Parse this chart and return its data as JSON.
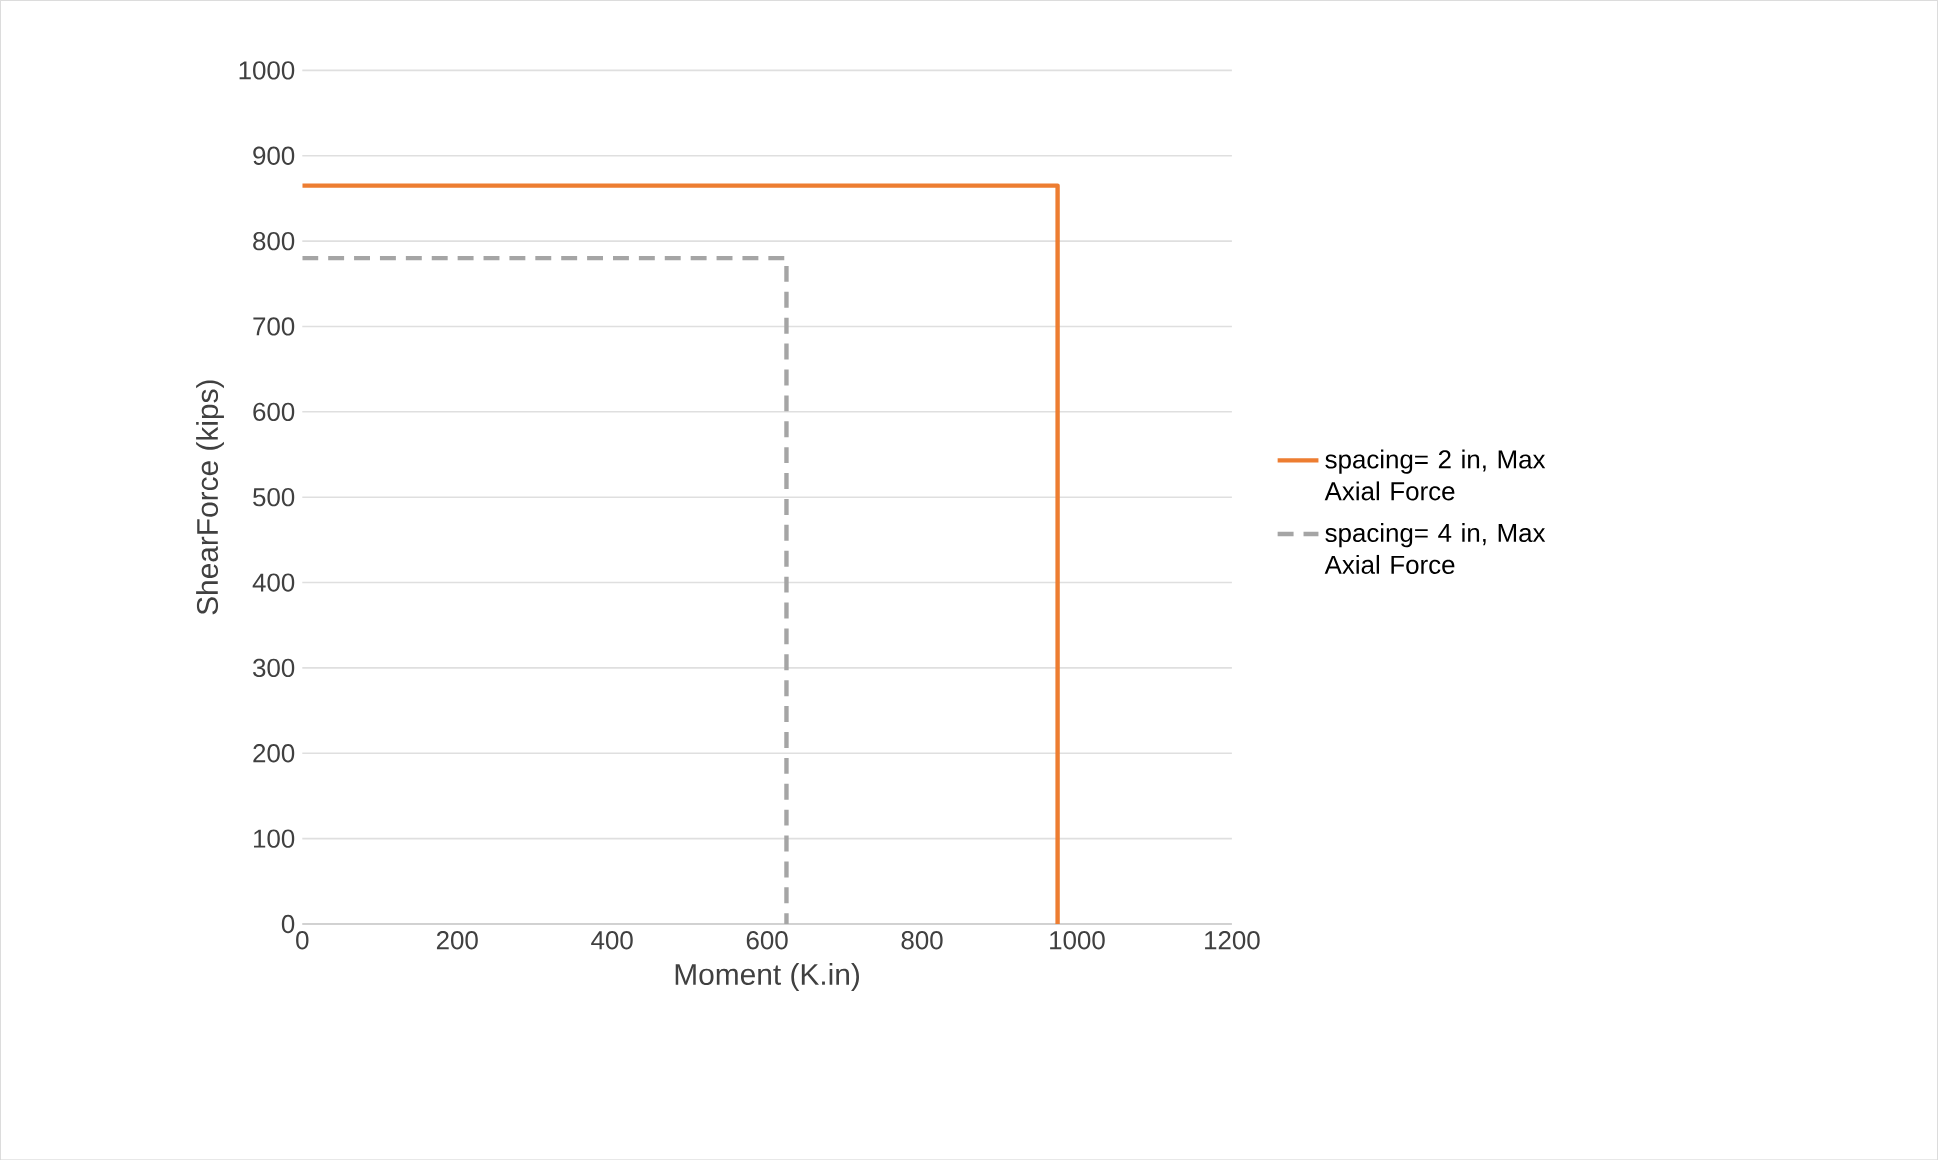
{
  "chart_data": {
    "type": "line",
    "xlabel": "Moment (K.in)",
    "ylabel": "ShearForce (kips)",
    "series": [
      {
        "name": "spacing= 2 in, Max Axial Force",
        "color": "#ed7d31",
        "line_style": "solid",
        "x": [
          0,
          975,
          975
        ],
        "values": [
          865,
          865,
          0
        ]
      },
      {
        "name": "spacing= 4 in, Max Axial Force",
        "color": "#a5a5a5",
        "line_style": "dashed",
        "x": [
          0,
          625,
          625
        ],
        "values": [
          780,
          780,
          0
        ]
      }
    ],
    "xlim": [
      0,
      1200
    ],
    "xticks": [
      0,
      200,
      400,
      600,
      800,
      1000,
      1200
    ],
    "ylim": [
      0,
      1000
    ],
    "yticks": [
      0,
      100,
      200,
      300,
      400,
      500,
      600,
      700,
      800,
      900,
      1000
    ],
    "grid": "y",
    "legend": "right",
    "marker": "none"
  }
}
